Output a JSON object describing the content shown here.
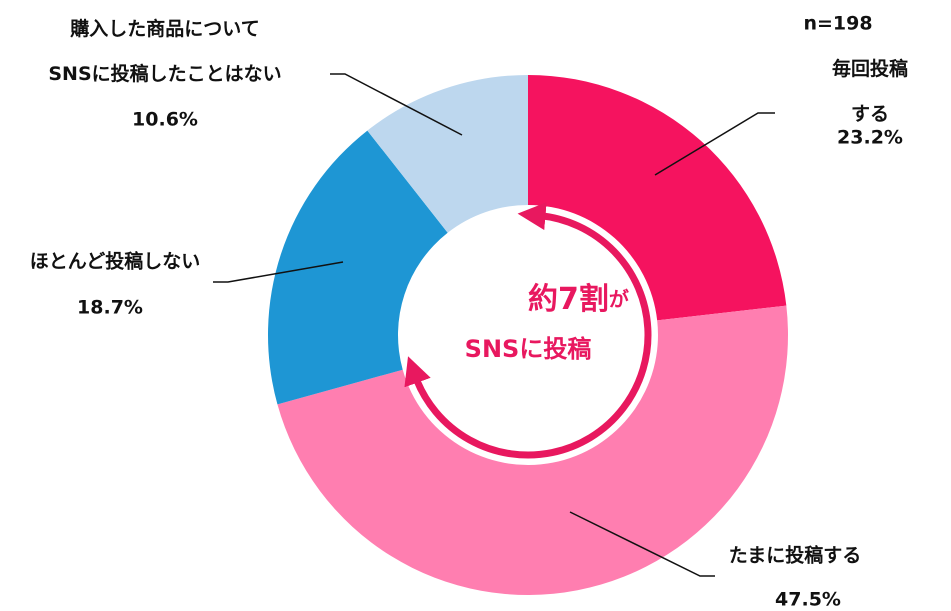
{
  "chart_data": {
    "type": "donut",
    "note": "n=198",
    "categories": [
      "毎回投稿する",
      "たまに投稿する",
      "ほとんど投稿しない",
      "購入した商品について\nSNSに投稿したことはない"
    ],
    "values": [
      23.2,
      47.5,
      18.7,
      10.6
    ],
    "value_labels": [
      "23.2%",
      "47.5%",
      "18.7%",
      "10.6%"
    ],
    "colors": [
      "#f5135f",
      "#ff7eb0",
      "#1e96d4",
      "#bdd7ee"
    ],
    "center_text": [
      "約7割",
      "が",
      "SNSに投稿"
    ]
  }
}
